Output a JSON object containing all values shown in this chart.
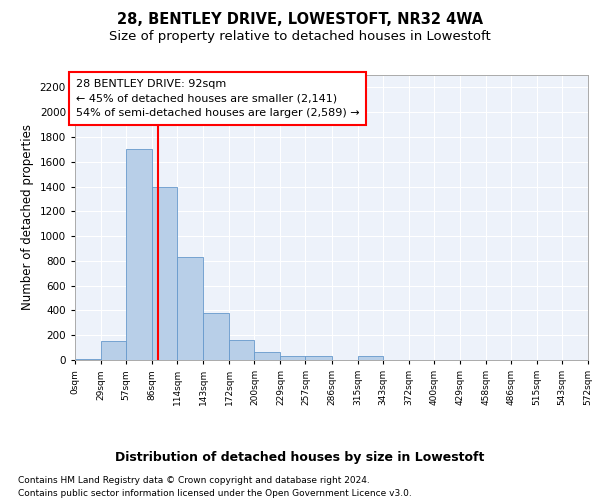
{
  "title1": "28, BENTLEY DRIVE, LOWESTOFT, NR32 4WA",
  "title2": "Size of property relative to detached houses in Lowestoft",
  "xlabel": "Distribution of detached houses by size in Lowestoft",
  "ylabel": "Number of detached properties",
  "bin_edges": [
    0,
    29,
    57,
    86,
    114,
    143,
    172,
    200,
    229,
    257,
    286,
    315,
    343,
    372,
    400,
    429,
    458,
    486,
    515,
    543,
    572
  ],
  "bin_labels": [
    "0sqm",
    "29sqm",
    "57sqm",
    "86sqm",
    "114sqm",
    "143sqm",
    "172sqm",
    "200sqm",
    "229sqm",
    "257sqm",
    "286sqm",
    "315sqm",
    "343sqm",
    "372sqm",
    "400sqm",
    "429sqm",
    "458sqm",
    "486sqm",
    "515sqm",
    "543sqm",
    "572sqm"
  ],
  "bar_heights": [
    10,
    150,
    1700,
    1400,
    830,
    380,
    160,
    65,
    35,
    30,
    0,
    30,
    0,
    0,
    0,
    0,
    0,
    0,
    0,
    0
  ],
  "bar_color": "#b8cfe8",
  "bar_edge_color": "#6699cc",
  "red_line_x": 92,
  "ylim": [
    0,
    2300
  ],
  "yticks": [
    0,
    200,
    400,
    600,
    800,
    1000,
    1200,
    1400,
    1600,
    1800,
    2000,
    2200
  ],
  "annotation_title": "28 BENTLEY DRIVE: 92sqm",
  "annotation_line1": "← 45% of detached houses are smaller (2,141)",
  "annotation_line2": "54% of semi-detached houses are larger (2,589) →",
  "footer1": "Contains HM Land Registry data © Crown copyright and database right 2024.",
  "footer2": "Contains public sector information licensed under the Open Government Licence v3.0.",
  "background_color": "#edf2fa",
  "grid_color": "#ffffff",
  "title1_fontsize": 10.5,
  "title2_fontsize": 9.5,
  "xlabel_fontsize": 9,
  "ylabel_fontsize": 8.5,
  "ann_fontsize": 8.0,
  "footer_fontsize": 6.5
}
